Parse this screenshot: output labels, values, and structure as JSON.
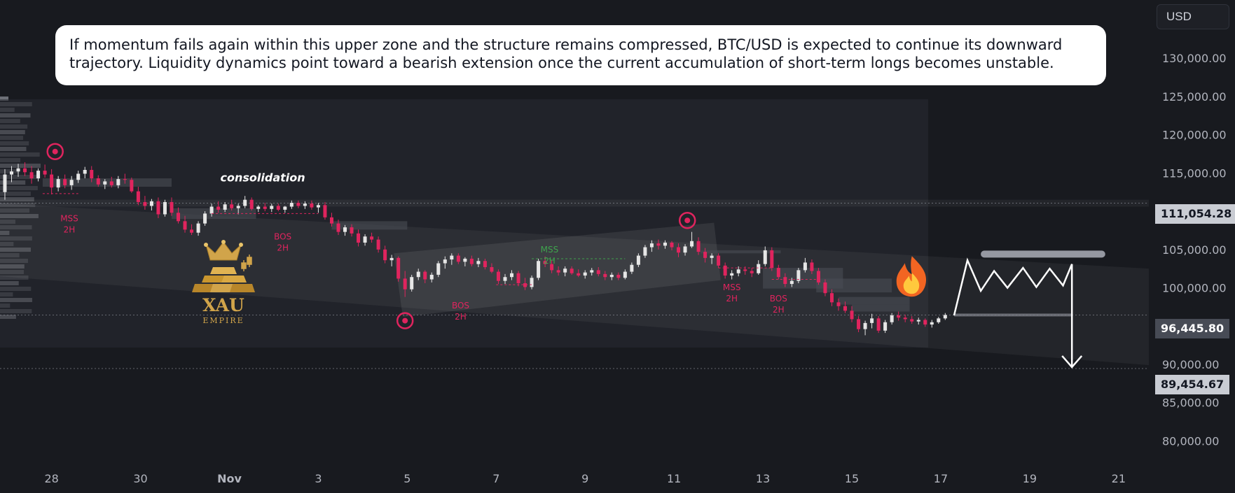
{
  "currency_button": "USD",
  "callout_text": "If momentum fails again within this upper zone and the structure remains compressed, BTC/USD is expected to continue its downward trajectory. Liquidity dynamics point toward a bearish extension once the current accumulation of short-term longs becomes unstable.",
  "price_tags": {
    "top": "111,054.28",
    "current": "96,445.80",
    "target": "89,454.67"
  },
  "logo": {
    "name": "XAU",
    "tagline": "EMPIRE"
  },
  "colors": {
    "background": "#181a1f",
    "bullish": "#e6e6e6",
    "bearish": "#e0245e",
    "annotation_red": "#e0245e",
    "annotation_green": "#3fa34d",
    "logo_gold": "#d1a44a"
  },
  "icons": [
    "fire-icon",
    "crown-icon",
    "gold-bars-icon",
    "target-circle-icon",
    "arrow-down-icon"
  ],
  "chart_data": {
    "type": "candlestick",
    "symbol": "BTC/USD",
    "y_axis": {
      "ticks": [
        80000,
        85000,
        90000,
        95000,
        100000,
        105000,
        110000,
        115000,
        120000,
        125000,
        130000
      ],
      "tick_labels": [
        "80,000.00",
        "85,000.00",
        "90,000.00",
        "95,000.00",
        "100,000.00",
        "105,000.00",
        "110,000.00",
        "115,000.00",
        "120,000.00",
        "125,000.00",
        "130,000.00"
      ],
      "ylim": [
        77300,
        137600
      ]
    },
    "x_axis": {
      "ticks": [
        0,
        2,
        4,
        6,
        8,
        10,
        12,
        14,
        16,
        18,
        20,
        22,
        24
      ],
      "tick_labels": [
        "28",
        "30",
        "Nov",
        "3",
        "5",
        "7",
        "9",
        "11",
        "13",
        "15",
        "17",
        "19",
        "21"
      ],
      "xlim": [
        -1.16,
        24.68
      ]
    },
    "horizontal_levels": [
      111054.28,
      96445.8,
      89454.67
    ],
    "annotations": [
      {
        "text": "consolidation",
        "x": 4.75,
        "y": 113900
      },
      {
        "text": "MSS",
        "sub": "2H",
        "x": 0.4,
        "y": 108700,
        "color": "red"
      },
      {
        "text": "BOS",
        "sub": "2H",
        "x": 5.2,
        "y": 106300,
        "color": "red"
      },
      {
        "text": "BOS",
        "sub": "2H",
        "x": 9.2,
        "y": 97300,
        "color": "red"
      },
      {
        "text": "MSS",
        "sub": "2H",
        "x": 11.2,
        "y": 104600,
        "color": "green"
      },
      {
        "text": "MSS",
        "sub": "2H",
        "x": 15.3,
        "y": 99700,
        "color": "red"
      },
      {
        "text": "BOS",
        "sub": "2H",
        "x": 16.35,
        "y": 98200,
        "color": "red"
      }
    ],
    "markers": [
      {
        "x": 0.08,
        "y": 117800
      },
      {
        "x": 7.95,
        "y": 95700
      },
      {
        "x": 14.3,
        "y": 108800
      }
    ],
    "projection": [
      {
        "x": 20.3,
        "y": 96400
      },
      {
        "x": 20.6,
        "y": 103600
      },
      {
        "x": 20.9,
        "y": 99600
      },
      {
        "x": 21.2,
        "y": 102200
      },
      {
        "x": 21.5,
        "y": 100000
      },
      {
        "x": 21.85,
        "y": 102600
      },
      {
        "x": 22.15,
        "y": 100100
      },
      {
        "x": 22.45,
        "y": 102500
      },
      {
        "x": 22.75,
        "y": 100300
      },
      {
        "x": 22.95,
        "y": 103100
      }
    ],
    "projection_target": {
      "x": 22.95,
      "y": 89454.67
    },
    "candles": [
      [
        -1.05,
        112500,
        115500,
        111500,
        114800
      ],
      [
        -0.9,
        114800,
        115900,
        113800,
        115200
      ],
      [
        -0.75,
        115200,
        116200,
        114500,
        115600
      ],
      [
        -0.6,
        115600,
        116400,
        114600,
        115100
      ],
      [
        -0.45,
        115100,
        115900,
        113600,
        114300
      ],
      [
        -0.3,
        114300,
        115600,
        113900,
        115300
      ],
      [
        -0.15,
        115300,
        116100,
        114400,
        114800
      ],
      [
        0.0,
        114800,
        115500,
        112200,
        113100
      ],
      [
        0.15,
        113100,
        114600,
        112600,
        114200
      ],
      [
        0.3,
        114200,
        114800,
        113000,
        113400
      ],
      [
        0.45,
        113400,
        114600,
        112800,
        114100
      ],
      [
        0.6,
        114100,
        115300,
        113700,
        114900
      ],
      [
        0.75,
        114900,
        115800,
        114300,
        115400
      ],
      [
        0.9,
        115400,
        115900,
        113800,
        114300
      ],
      [
        1.05,
        114300,
        114700,
        113200,
        113500
      ],
      [
        1.2,
        113500,
        114200,
        112900,
        113900
      ],
      [
        1.35,
        113900,
        114500,
        113100,
        113400
      ],
      [
        1.5,
        113400,
        114600,
        113000,
        114200
      ],
      [
        1.65,
        114200,
        114900,
        113600,
        114100
      ],
      [
        1.8,
        114100,
        114400,
        112400,
        112600
      ],
      [
        1.95,
        112600,
        113200,
        110800,
        111200
      ],
      [
        2.1,
        111200,
        112000,
        110200,
        110700
      ],
      [
        2.25,
        110700,
        111600,
        110100,
        111300
      ],
      [
        2.4,
        111300,
        111800,
        109100,
        109600
      ],
      [
        2.55,
        109600,
        111500,
        109300,
        111200
      ],
      [
        2.7,
        111200,
        111800,
        109400,
        109800
      ],
      [
        2.85,
        109800,
        110500,
        108400,
        108700
      ],
      [
        3.0,
        108700,
        109400,
        107200,
        107600
      ],
      [
        3.15,
        107600,
        108300,
        106900,
        107200
      ],
      [
        3.3,
        107200,
        108700,
        106800,
        108400
      ],
      [
        3.45,
        108400,
        110000,
        108100,
        109700
      ],
      [
        3.6,
        109700,
        111000,
        109300,
        110600
      ],
      [
        3.75,
        110600,
        111300,
        109800,
        110200
      ],
      [
        3.9,
        110200,
        111200,
        109900,
        110900
      ],
      [
        4.05,
        110900,
        111500,
        110100,
        110400
      ],
      [
        4.2,
        110400,
        111000,
        109600,
        110700
      ],
      [
        4.35,
        110700,
        112000,
        110400,
        111500
      ],
      [
        4.5,
        111500,
        111800,
        110100,
        110300
      ],
      [
        4.65,
        110300,
        110800,
        109900,
        110600
      ],
      [
        4.8,
        110600,
        111100,
        110000,
        110300
      ],
      [
        4.95,
        110300,
        111000,
        109900,
        110700
      ],
      [
        5.1,
        110700,
        111000,
        110000,
        110200
      ],
      [
        5.25,
        110200,
        110700,
        109800,
        110600
      ],
      [
        5.4,
        110600,
        111400,
        110300,
        111100
      ],
      [
        5.55,
        111100,
        111400,
        110400,
        110700
      ],
      [
        5.7,
        110700,
        111300,
        110300,
        111000
      ],
      [
        5.85,
        111000,
        111400,
        110200,
        110500
      ],
      [
        6.0,
        110500,
        111100,
        109800,
        110800
      ],
      [
        6.15,
        110800,
        111200,
        108900,
        109200
      ],
      [
        6.3,
        109200,
        109800,
        108000,
        108400
      ],
      [
        6.45,
        108400,
        108900,
        106900,
        107300
      ],
      [
        6.6,
        107300,
        108200,
        106800,
        107900
      ],
      [
        6.75,
        107900,
        108300,
        106700,
        107100
      ],
      [
        6.9,
        107100,
        107600,
        105400,
        105900
      ],
      [
        7.05,
        105900,
        107000,
        105500,
        106700
      ],
      [
        7.2,
        106700,
        107200,
        105900,
        106300
      ],
      [
        7.35,
        106300,
        106700,
        104600,
        105000
      ],
      [
        7.5,
        105000,
        105500,
        103200,
        103600
      ],
      [
        7.65,
        103600,
        104300,
        102800,
        103900
      ],
      [
        7.8,
        103900,
        104100,
        100800,
        101200
      ],
      [
        7.95,
        101200,
        102200,
        98800,
        99800
      ],
      [
        8.1,
        99800,
        101700,
        99500,
        101400
      ],
      [
        8.25,
        101400,
        102500,
        101000,
        102100
      ],
      [
        8.4,
        102100,
        102300,
        100600,
        101100
      ],
      [
        8.55,
        101100,
        102000,
        100700,
        101700
      ],
      [
        8.7,
        101700,
        103500,
        101400,
        103200
      ],
      [
        8.85,
        103200,
        104100,
        102500,
        103700
      ],
      [
        9.0,
        103700,
        104500,
        103000,
        104200
      ],
      [
        9.15,
        104200,
        104500,
        103100,
        103400
      ],
      [
        9.3,
        103400,
        104000,
        102800,
        103800
      ],
      [
        9.45,
        103800,
        104200,
        102800,
        103100
      ],
      [
        9.6,
        103100,
        103900,
        102700,
        103500
      ],
      [
        9.75,
        103500,
        103800,
        102400,
        102700
      ],
      [
        9.9,
        102700,
        103200,
        101900,
        102100
      ],
      [
        10.05,
        102100,
        102400,
        100500,
        100900
      ],
      [
        10.2,
        100900,
        101800,
        100500,
        101400
      ],
      [
        10.35,
        101400,
        102300,
        101000,
        101900
      ],
      [
        10.5,
        101900,
        102200,
        100200,
        100600
      ],
      [
        10.65,
        100600,
        101300,
        99700,
        100100
      ],
      [
        10.8,
        100100,
        101600,
        99800,
        101300
      ],
      [
        10.95,
        101300,
        103800,
        101000,
        103500
      ],
      [
        11.1,
        103500,
        104100,
        102700,
        103100
      ],
      [
        11.25,
        103100,
        103600,
        101900,
        102300
      ],
      [
        11.4,
        102300,
        102800,
        101600,
        102000
      ],
      [
        11.55,
        102000,
        102800,
        101500,
        102500
      ],
      [
        11.7,
        102500,
        102800,
        101700,
        101900
      ],
      [
        11.85,
        101900,
        102400,
        101400,
        101600
      ],
      [
        12.0,
        101600,
        102300,
        101200,
        102000
      ],
      [
        12.15,
        102000,
        102600,
        101600,
        102300
      ],
      [
        12.3,
        102300,
        102700,
        101500,
        101800
      ],
      [
        12.45,
        101800,
        102200,
        101000,
        101400
      ],
      [
        12.6,
        101400,
        102000,
        101000,
        101700
      ],
      [
        12.75,
        101700,
        102000,
        101000,
        101300
      ],
      [
        12.9,
        101300,
        102400,
        101100,
        102100
      ],
      [
        13.05,
        102100,
        103300,
        101800,
        103000
      ],
      [
        13.2,
        103000,
        104500,
        102700,
        104200
      ],
      [
        13.35,
        104200,
        105600,
        103900,
        105300
      ],
      [
        13.5,
        105300,
        106200,
        104700,
        105800
      ],
      [
        13.65,
        105800,
        106300,
        105000,
        105500
      ],
      [
        13.8,
        105500,
        106200,
        105100,
        105900
      ],
      [
        13.95,
        105900,
        106100,
        104900,
        105300
      ],
      [
        14.1,
        105300,
        105800,
        104000,
        104600
      ],
      [
        14.25,
        104600,
        105700,
        104200,
        105400
      ],
      [
        14.4,
        105400,
        107300,
        105200,
        106100
      ],
      [
        14.55,
        106100,
        106600,
        104300,
        104700
      ],
      [
        14.7,
        104700,
        105200,
        103300,
        103900
      ],
      [
        14.85,
        103900,
        104500,
        103100,
        104200
      ],
      [
        15.0,
        104200,
        104500,
        102600,
        102900
      ],
      [
        15.15,
        102900,
        103300,
        101200,
        101600
      ],
      [
        15.3,
        101600,
        102300,
        101100,
        101900
      ],
      [
        15.45,
        101900,
        102800,
        101500,
        102400
      ],
      [
        15.6,
        102400,
        102800,
        101700,
        102200
      ],
      [
        15.75,
        102200,
        102600,
        101400,
        101900
      ],
      [
        15.9,
        101900,
        103600,
        101700,
        103100
      ],
      [
        16.05,
        103100,
        105400,
        102800,
        104900
      ],
      [
        16.2,
        104900,
        105300,
        102200,
        102600
      ],
      [
        16.35,
        102600,
        103000,
        101100,
        101400
      ],
      [
        16.5,
        101400,
        101900,
        100100,
        100500
      ],
      [
        16.65,
        100500,
        101300,
        100100,
        100900
      ],
      [
        16.8,
        100900,
        102600,
        100600,
        102300
      ],
      [
        16.95,
        102300,
        103900,
        102000,
        103300
      ],
      [
        17.1,
        103300,
        103700,
        101800,
        102200
      ],
      [
        17.25,
        102200,
        102600,
        100400,
        100700
      ],
      [
        17.4,
        100700,
        101100,
        98900,
        99300
      ],
      [
        17.55,
        99300,
        99800,
        97600,
        98100
      ],
      [
        17.7,
        98100,
        98600,
        97000,
        97600
      ],
      [
        17.85,
        97600,
        98200,
        96700,
        97000
      ],
      [
        18.0,
        97000,
        97600,
        95500,
        95900
      ],
      [
        18.15,
        95900,
        96300,
        94200,
        94600
      ],
      [
        18.3,
        94600,
        95700,
        93800,
        95400
      ],
      [
        18.45,
        95400,
        96600,
        94700,
        96000
      ],
      [
        18.6,
        96000,
        96300,
        94100,
        94400
      ],
      [
        18.75,
        94400,
        95800,
        94100,
        95500
      ],
      [
        18.9,
        95500,
        96700,
        95200,
        96400
      ],
      [
        19.05,
        96400,
        96900,
        95700,
        96100
      ],
      [
        19.2,
        96100,
        96500,
        95500,
        95900
      ],
      [
        19.35,
        95900,
        96300,
        95300,
        95600
      ],
      [
        19.5,
        95600,
        96100,
        95200,
        95800
      ],
      [
        19.65,
        95800,
        96000,
        94900,
        95200
      ],
      [
        19.8,
        95200,
        95800,
        94800,
        95500
      ],
      [
        19.95,
        95500,
        96200,
        95300,
        96000
      ],
      [
        20.1,
        96000,
        96700,
        95800,
        96446
      ]
    ]
  }
}
